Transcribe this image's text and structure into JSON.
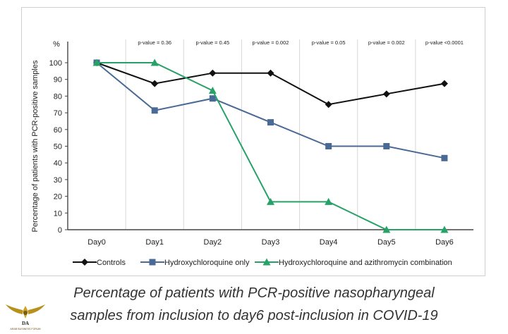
{
  "chart_data": {
    "type": "line",
    "ylabel": "Percentage of patients with PCR-positive samples",
    "y_unit": "%",
    "ylim": [
      0,
      100
    ],
    "yticks": [
      0,
      10,
      20,
      30,
      40,
      50,
      60,
      70,
      80,
      90,
      100
    ],
    "categories": [
      "Day0",
      "Day1",
      "Day2",
      "Day3",
      "Day4",
      "Day5",
      "Day6"
    ],
    "p_values": [
      "p-value = 0.36",
      "p-value = 0.45",
      "p-value = 0.002",
      "p-value = 0.05",
      "p-value = 0.002",
      "p-value <0.0001"
    ],
    "grid": "vertical",
    "legend_position": "bottom",
    "series": [
      {
        "name": "Controls",
        "color": "#111111",
        "marker": "diamond",
        "values": [
          100,
          87.5,
          93.8,
          93.8,
          75,
          81.3,
          87.5
        ]
      },
      {
        "name": "Hydroxychloroquine only",
        "color": "#4a6a96",
        "marker": "square",
        "values": [
          100,
          71.4,
          78.6,
          64.3,
          50,
          50,
          42.9
        ]
      },
      {
        "name": "Hydroxychloroquine and azithromycin combination",
        "color": "#26a269",
        "marker": "triangle",
        "values": [
          100,
          100,
          83.3,
          16.7,
          16.7,
          0,
          0
        ]
      }
    ]
  },
  "caption": {
    "line1": "Percentage of patients with PCR-positive nasopharyngeal",
    "line2": "samples from inclusion to day6 post-inclusion in COVID-19"
  },
  "logo": {
    "text_top": "DA",
    "text_mid": "ARAB BUSINESS FORUM",
    "icon": "winged-emblem-icon"
  }
}
